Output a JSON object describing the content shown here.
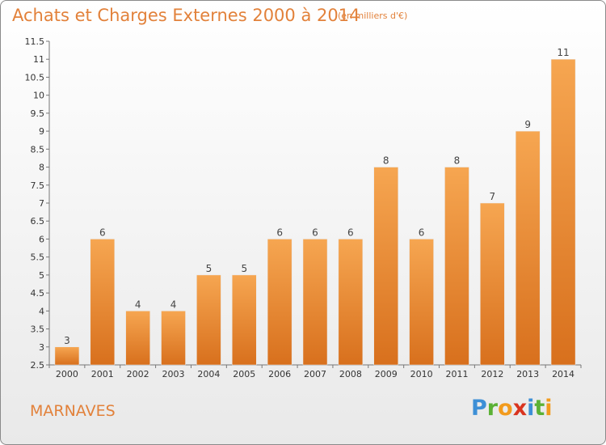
{
  "title": "Achats et Charges Externes 2000 à 2014",
  "subtitle": "(en milliers d'€)",
  "commune": "MARNAVES",
  "logo": {
    "letters": [
      {
        "ch": "P",
        "color": "#3d8fd6"
      },
      {
        "ch": "r",
        "color": "#5bb135"
      },
      {
        "ch": "o",
        "color": "#f29b1d"
      },
      {
        "ch": "x",
        "color": "#d9341f"
      },
      {
        "ch": "i",
        "color": "#3d8fd6"
      },
      {
        "ch": "t",
        "color": "#5bb135"
      },
      {
        "ch": "i",
        "color": "#f29b1d"
      }
    ]
  },
  "colors": {
    "accent": "#e2813a",
    "bar_top": "#f6a651",
    "bar_bottom": "#d8701d"
  },
  "chart_data": {
    "type": "bar",
    "categories": [
      "2000",
      "2001",
      "2002",
      "2003",
      "2004",
      "2005",
      "2006",
      "2007",
      "2008",
      "2009",
      "2010",
      "2011",
      "2012",
      "2013",
      "2014"
    ],
    "values": [
      3,
      6,
      4,
      4,
      5,
      5,
      6,
      6,
      6,
      8,
      6,
      8,
      7,
      9,
      11
    ],
    "data_labels": [
      "3",
      "6",
      "4",
      "4",
      "5",
      "5",
      "6",
      "6",
      "6",
      "8",
      "6",
      "8",
      "7",
      "9",
      "11"
    ],
    "ylim": [
      2.5,
      11.5
    ],
    "yticks": [
      2.5,
      3,
      3.5,
      4,
      4.5,
      5,
      5.5,
      6,
      6.5,
      7,
      7.5,
      8,
      8.5,
      9,
      9.5,
      10,
      10.5,
      11,
      11.5
    ],
    "ytick_labels": [
      "2.5",
      "3",
      "3.5",
      "4",
      "4.5",
      "5",
      "5.5",
      "6",
      "6.5",
      "7",
      "7.5",
      "8",
      "8.5",
      "9",
      "9.5",
      "10",
      "10.5",
      "11",
      "11.5"
    ],
    "grid": false
  }
}
